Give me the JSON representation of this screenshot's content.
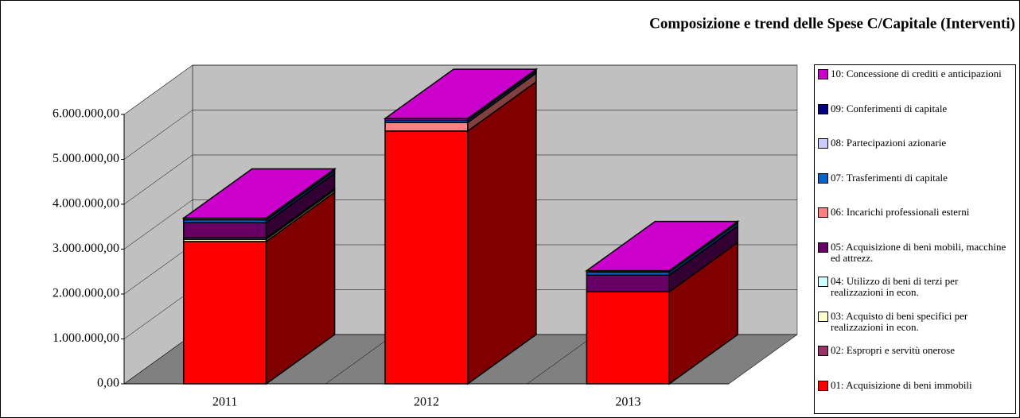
{
  "chart_data": {
    "type": "bar3d_stacked",
    "title": "Composizione e trend delle Spese C/Capitale (Interventi)",
    "categories": [
      "2011",
      "2012",
      "2013"
    ],
    "ylim": [
      0,
      6000000
    ],
    "yticks": [
      {
        "value": 0,
        "label": "0,00"
      },
      {
        "value": 1000000,
        "label": "1.000.000,00"
      },
      {
        "value": 2000000,
        "label": "2.000.000,00"
      },
      {
        "value": 3000000,
        "label": "3.000.000,00"
      },
      {
        "value": 4000000,
        "label": "4.000.000,00"
      },
      {
        "value": 5000000,
        "label": "5.000.000,00"
      },
      {
        "value": 6000000,
        "label": "6.000.000,00"
      }
    ],
    "grid": true,
    "legend": "right",
    "series": [
      {
        "name": "01: Acquisizione di beni immobili",
        "color": "#ff0000",
        "values": [
          3170000,
          5630000,
          2050000
        ]
      },
      {
        "name": "02: Espropri e servitù onerose",
        "color": "#993366",
        "values": [
          0,
          0,
          0
        ]
      },
      {
        "name": "03: Acquisto di beni specifici per realizzazioni in econ.",
        "color": "#ffffcc",
        "values": [
          50000,
          0,
          0
        ]
      },
      {
        "name": "04: Utilizzo di beni di terzi per realizzazioni in econ.",
        "color": "#ccffff",
        "values": [
          30000,
          0,
          0
        ]
      },
      {
        "name": "05: Acquisizione di beni mobili, macchine ed attrezz.",
        "color": "#660066",
        "values": [
          340000,
          0,
          370000
        ]
      },
      {
        "name": "06: Incarichi professionali esterni",
        "color": "#ff8080",
        "values": [
          0,
          190000,
          0
        ]
      },
      {
        "name": "07: Trasferimenti di capitale",
        "color": "#0066cc",
        "values": [
          60000,
          50000,
          70000
        ]
      },
      {
        "name": "08: Partecipazioni azionarie",
        "color": "#ccccff",
        "values": [
          0,
          0,
          0
        ]
      },
      {
        "name": "09: Conferimenti di capitale",
        "color": "#000080",
        "values": [
          0,
          0,
          0
        ]
      },
      {
        "name": "10: Concessione di crediti e anticipazioni",
        "color": "#cc00cc",
        "values": [
          40000,
          40000,
          30000
        ]
      }
    ]
  }
}
